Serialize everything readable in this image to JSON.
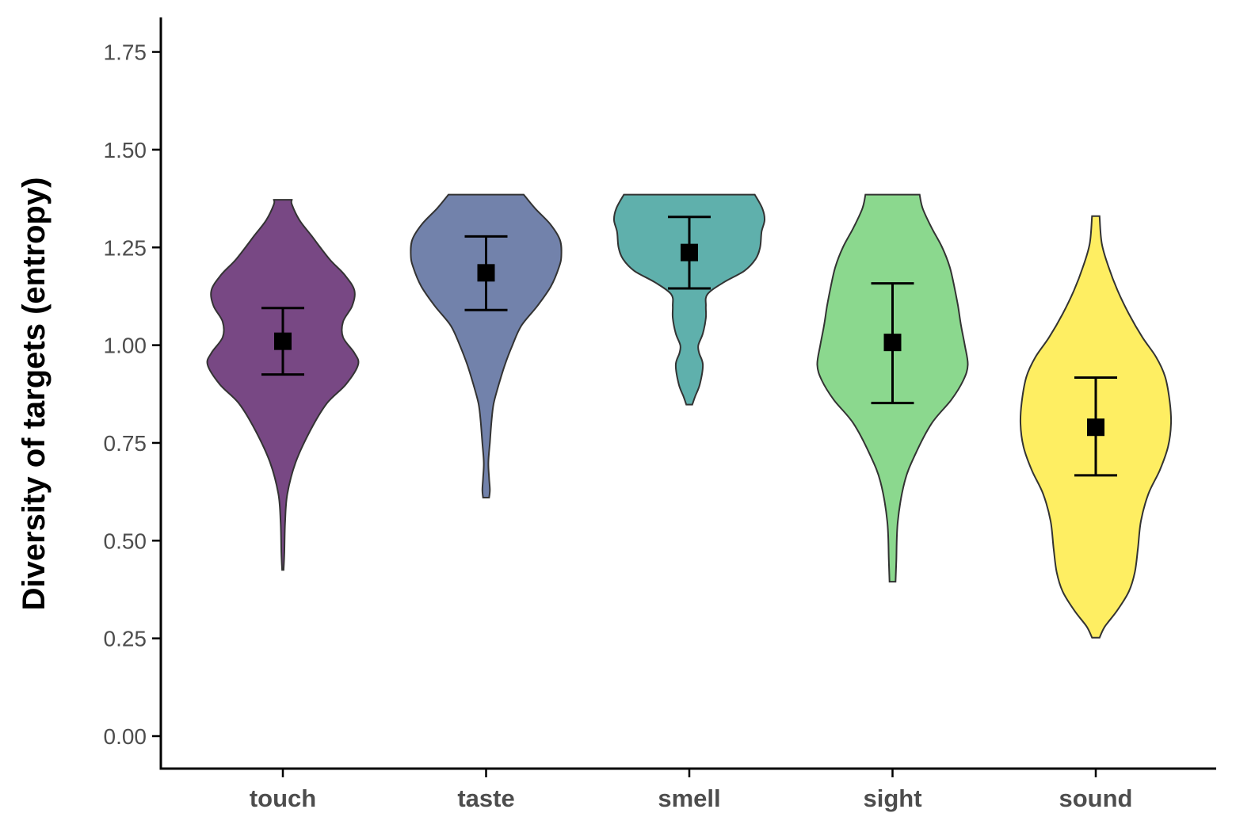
{
  "chart_data": {
    "type": "violin",
    "title": "",
    "xlabel": "",
    "ylabel": "Diversity of targets (entropy)",
    "ylim": [
      -0.08,
      1.83
    ],
    "yticks": [
      "0.00",
      "0.25",
      "0.50",
      "0.75",
      "1.00",
      "1.25",
      "1.50",
      "1.75"
    ],
    "ytick_values": [
      0,
      0.25,
      0.5,
      0.75,
      1.0,
      1.25,
      1.5,
      1.75
    ],
    "categories": [
      "touch",
      "taste",
      "smell",
      "sight",
      "sound"
    ],
    "grid": false,
    "legend": "none",
    "groups": [
      {
        "name": "touch",
        "color": "#440154",
        "mean": 1.01,
        "ci_low": 0.925,
        "ci_high": 1.095,
        "min": 0.425,
        "max": 1.372,
        "density_profile": [
          [
            0.425,
            0.01
          ],
          [
            0.47,
            0.02
          ],
          [
            0.55,
            0.03
          ],
          [
            0.62,
            0.06
          ],
          [
            0.7,
            0.17
          ],
          [
            0.78,
            0.36
          ],
          [
            0.85,
            0.58
          ],
          [
            0.9,
            0.84
          ],
          [
            0.95,
            1.0
          ],
          [
            0.98,
            0.95
          ],
          [
            1.02,
            0.8
          ],
          [
            1.06,
            0.8
          ],
          [
            1.1,
            0.92
          ],
          [
            1.14,
            0.95
          ],
          [
            1.18,
            0.82
          ],
          [
            1.22,
            0.62
          ],
          [
            1.28,
            0.38
          ],
          [
            1.32,
            0.22
          ],
          [
            1.36,
            0.12
          ],
          [
            1.372,
            0.12
          ]
        ]
      },
      {
        "name": "taste",
        "color": "#3b528b",
        "mean": 1.185,
        "ci_low": 1.09,
        "ci_high": 1.278,
        "min": 0.61,
        "max": 1.385,
        "density_profile": [
          [
            0.61,
            0.04
          ],
          [
            0.63,
            0.05
          ],
          [
            0.66,
            0.04
          ],
          [
            0.7,
            0.03
          ],
          [
            0.75,
            0.05
          ],
          [
            0.8,
            0.07
          ],
          [
            0.85,
            0.1
          ],
          [
            0.9,
            0.17
          ],
          [
            0.95,
            0.25
          ],
          [
            1.0,
            0.35
          ],
          [
            1.05,
            0.47
          ],
          [
            1.1,
            0.68
          ],
          [
            1.15,
            0.86
          ],
          [
            1.2,
            0.97
          ],
          [
            1.23,
            1.0
          ],
          [
            1.27,
            0.98
          ],
          [
            1.31,
            0.85
          ],
          [
            1.35,
            0.65
          ],
          [
            1.385,
            0.5
          ]
        ]
      },
      {
        "name": "smell",
        "color": "#21918c",
        "mean": 1.237,
        "ci_low": 1.145,
        "ci_high": 1.328,
        "min": 0.848,
        "max": 1.385,
        "density_profile": [
          [
            0.848,
            0.04
          ],
          [
            0.87,
            0.08
          ],
          [
            0.9,
            0.14
          ],
          [
            0.95,
            0.18
          ],
          [
            0.98,
            0.13
          ],
          [
            1.0,
            0.12
          ],
          [
            1.03,
            0.18
          ],
          [
            1.07,
            0.22
          ],
          [
            1.1,
            0.22
          ],
          [
            1.13,
            0.24
          ],
          [
            1.16,
            0.45
          ],
          [
            1.19,
            0.73
          ],
          [
            1.22,
            0.88
          ],
          [
            1.25,
            0.94
          ],
          [
            1.29,
            0.96
          ],
          [
            1.32,
            1.0
          ],
          [
            1.35,
            0.97
          ],
          [
            1.385,
            0.87
          ]
        ]
      },
      {
        "name": "sight",
        "color": "#5ec962",
        "mean": 1.007,
        "ci_low": 0.852,
        "ci_high": 1.158,
        "min": 0.395,
        "max": 1.385,
        "density_profile": [
          [
            0.395,
            0.04
          ],
          [
            0.45,
            0.05
          ],
          [
            0.55,
            0.07
          ],
          [
            0.65,
            0.16
          ],
          [
            0.72,
            0.3
          ],
          [
            0.8,
            0.52
          ],
          [
            0.86,
            0.78
          ],
          [
            0.91,
            0.94
          ],
          [
            0.95,
            1.0
          ],
          [
            1.0,
            0.96
          ],
          [
            1.05,
            0.91
          ],
          [
            1.1,
            0.87
          ],
          [
            1.15,
            0.82
          ],
          [
            1.2,
            0.76
          ],
          [
            1.25,
            0.66
          ],
          [
            1.3,
            0.52
          ],
          [
            1.35,
            0.4
          ],
          [
            1.385,
            0.36
          ]
        ]
      },
      {
        "name": "sound",
        "color": "#fde725",
        "mean": 0.79,
        "ci_low": 0.667,
        "ci_high": 0.917,
        "min": 0.252,
        "max": 1.33,
        "density_profile": [
          [
            0.252,
            0.05
          ],
          [
            0.28,
            0.12
          ],
          [
            0.32,
            0.28
          ],
          [
            0.37,
            0.44
          ],
          [
            0.42,
            0.52
          ],
          [
            0.48,
            0.56
          ],
          [
            0.55,
            0.6
          ],
          [
            0.62,
            0.7
          ],
          [
            0.68,
            0.85
          ],
          [
            0.74,
            0.96
          ],
          [
            0.8,
            1.0
          ],
          [
            0.86,
            0.98
          ],
          [
            0.92,
            0.92
          ],
          [
            0.97,
            0.8
          ],
          [
            1.02,
            0.62
          ],
          [
            1.08,
            0.44
          ],
          [
            1.14,
            0.29
          ],
          [
            1.2,
            0.17
          ],
          [
            1.26,
            0.08
          ],
          [
            1.33,
            0.05
          ]
        ]
      }
    ]
  }
}
